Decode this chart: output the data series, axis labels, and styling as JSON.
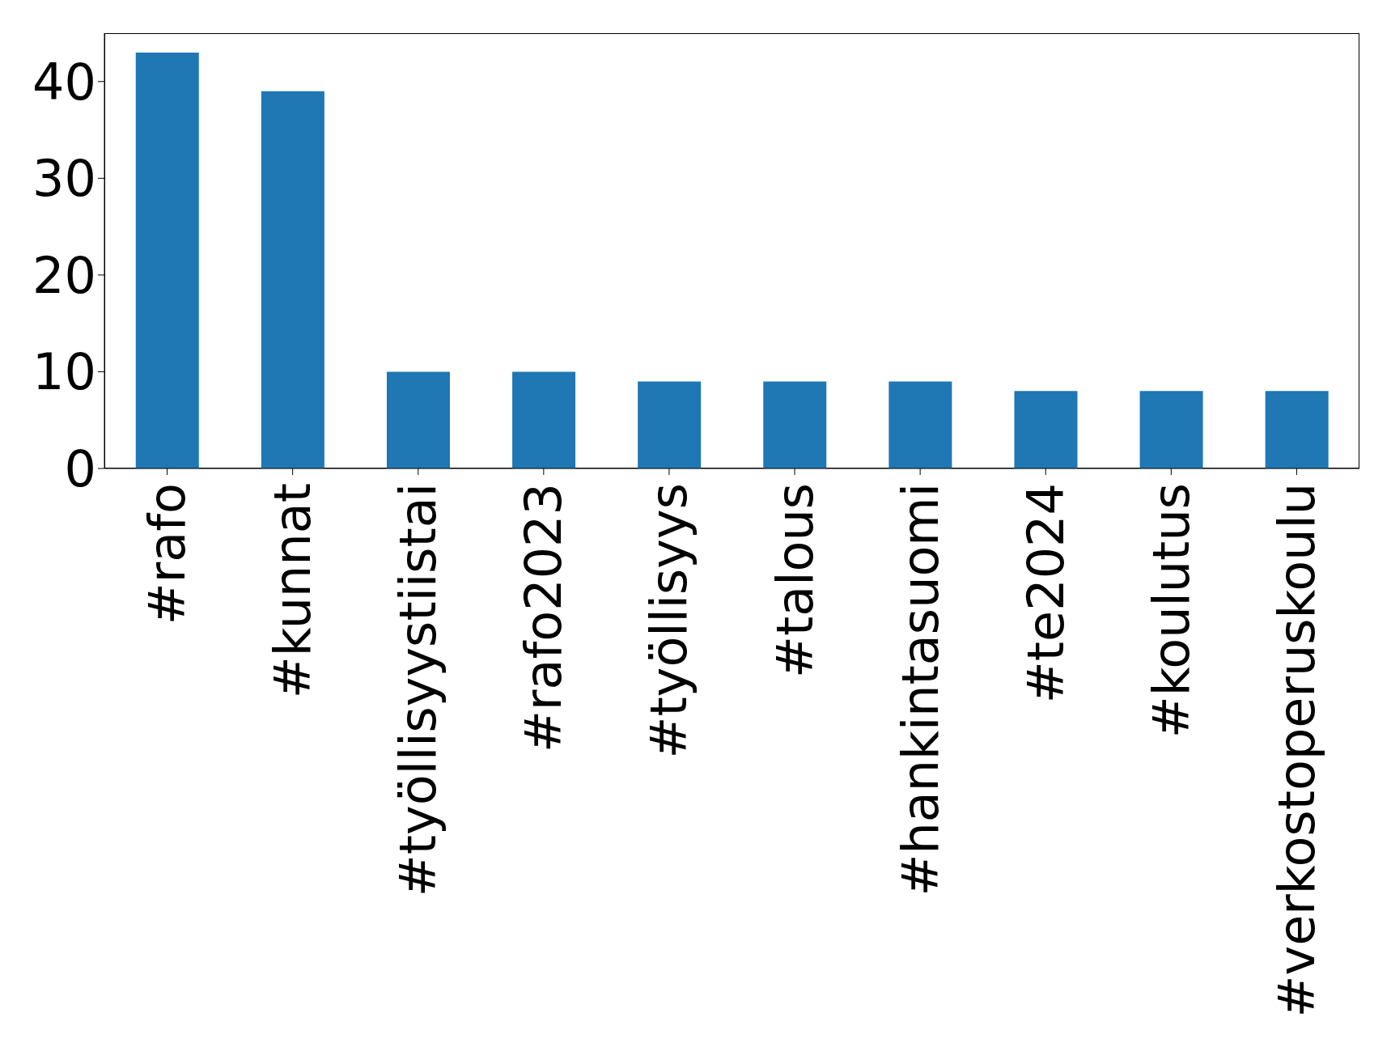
{
  "chart_data": {
    "type": "bar",
    "categories": [
      "#rafo",
      "#kunnat",
      "#työllisyystiistai",
      "#rafo2023",
      "#työllisyys",
      "#talous",
      "#hankintasuomi",
      "#te2024",
      "#koulutus",
      "#verkostoperuskoulu"
    ],
    "values": [
      43,
      39,
      10,
      10,
      9,
      9,
      9,
      8,
      8,
      8
    ],
    "color": "#1f77b4",
    "ylim": [
      0,
      45
    ],
    "yticks": [
      0,
      10,
      20,
      30,
      40
    ]
  }
}
